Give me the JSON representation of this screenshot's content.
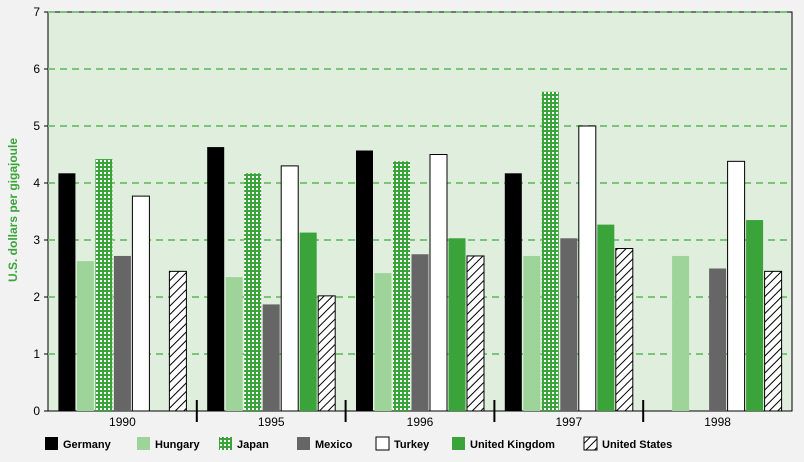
{
  "chart_data": {
    "type": "bar",
    "title": "",
    "xlabel": "",
    "ylabel": "U.S. dollars per gigajoule",
    "ylim": [
      0,
      7
    ],
    "yticks": [
      "0",
      "1",
      "2",
      "3",
      "4",
      "5",
      "6",
      "7"
    ],
    "grid": true,
    "legend_position": "bottom",
    "categories": [
      "1990",
      "1995",
      "1996",
      "1997",
      "1998"
    ],
    "series": [
      {
        "name": "Germany",
        "color": "#000000",
        "pattern": "solid-black",
        "values": [
          4.17,
          4.63,
          4.57,
          4.17,
          null
        ]
      },
      {
        "name": "Hungary",
        "color": "#9ed49a",
        "pattern": "solid-lightgreen",
        "values": [
          2.63,
          2.35,
          2.42,
          2.72,
          2.72
        ]
      },
      {
        "name": "Japan",
        "color": "#3aa33a",
        "pattern": "dotted-green",
        "values": [
          4.42,
          4.17,
          4.38,
          5.6,
          null
        ]
      },
      {
        "name": "Mexico",
        "color": "#666666",
        "pattern": "solid-gray",
        "values": [
          2.72,
          1.87,
          2.75,
          3.03,
          2.5
        ]
      },
      {
        "name": "Turkey",
        "color": "#ffffff",
        "pattern": "white",
        "values": [
          3.77,
          4.3,
          4.5,
          5.0,
          4.38
        ]
      },
      {
        "name": "United Kingdom",
        "color": "#3aa33a",
        "pattern": "solid-green",
        "values": [
          null,
          3.13,
          3.03,
          3.27,
          3.35
        ]
      },
      {
        "name": "United States",
        "color": "#ffffff",
        "pattern": "hatched",
        "values": [
          2.45,
          2.02,
          2.72,
          2.85,
          2.45
        ]
      }
    ]
  },
  "colors": {
    "plot_background": "#dfeedd",
    "gridline": "#7cc47a",
    "axis_label": "#3aa33a"
  }
}
